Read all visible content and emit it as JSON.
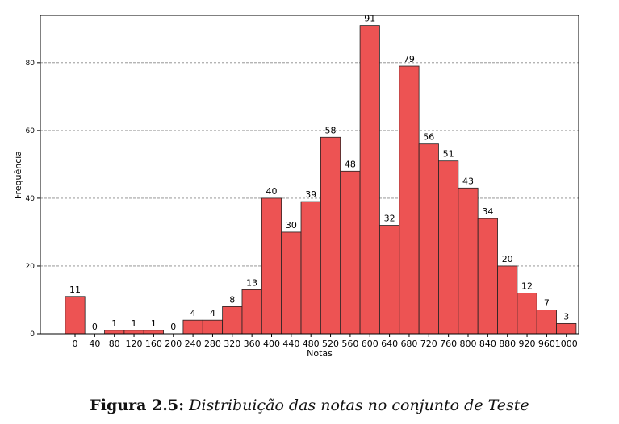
{
  "chart_data": {
    "type": "bar",
    "xlabel": "Notas",
    "ylabel": "Frequência",
    "ylim": [
      0,
      94
    ],
    "yticks": [
      0,
      20,
      40,
      60,
      80
    ],
    "grid": "y-dashed",
    "bar_color": "#ed5353",
    "edge_color": "#222222",
    "bins": [
      0,
      40,
      80,
      120,
      160,
      200,
      240,
      280,
      320,
      360,
      400,
      440,
      480,
      520,
      560,
      600,
      640,
      680,
      720,
      760,
      800,
      840,
      880,
      920,
      960,
      1000
    ],
    "values": [
      11,
      0,
      1,
      1,
      1,
      0,
      4,
      4,
      8,
      13,
      40,
      30,
      39,
      58,
      48,
      91,
      32,
      79,
      56,
      51,
      43,
      34,
      20,
      12,
      7,
      3
    ],
    "xtick_labels": [
      "0",
      "40",
      "80",
      "120",
      "160",
      "200",
      "240",
      "280",
      "320",
      "360",
      "400",
      "440",
      "480",
      "520",
      "560",
      "600",
      "640",
      "680",
      "720",
      "760",
      "800",
      "840",
      "880",
      "920",
      "960",
      "1000"
    ]
  },
  "caption": {
    "prefix": "Figura 2.5:",
    "text": "Distribuição das notas no conjunto de Teste"
  }
}
